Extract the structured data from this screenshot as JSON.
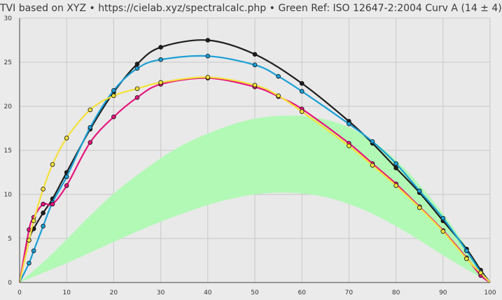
{
  "chart_data": {
    "type": "line",
    "title": "TVI based on XYZ  •  https://cielab.xyz/spectralcalc.php  •  Green Ref: ISO 12647-2:2004 Curv A (14 ± 4)",
    "xlabel": "",
    "ylabel": "",
    "xlim": [
      0,
      100
    ],
    "ylim": [
      0,
      30
    ],
    "grid": true,
    "legend": "none",
    "x_ticks": [
      "0",
      "10",
      "20",
      "30",
      "40",
      "50",
      "60",
      "70",
      "80",
      "90",
      "100"
    ],
    "y_ticks": [
      "0",
      "5",
      "10",
      "15",
      "20",
      "25",
      "30"
    ],
    "reference_band": {
      "name": "",
      "color": "#b2f9b6",
      "x": [
        0,
        5,
        10,
        15,
        20,
        25,
        30,
        35,
        40,
        45,
        50,
        55,
        60,
        65,
        70,
        75,
        80,
        85,
        90,
        95,
        100
      ],
      "upper": [
        0,
        2.3,
        4.9,
        7.6,
        10.1,
        12.2,
        14.1,
        15.7,
        16.9,
        17.9,
        18.6,
        18.9,
        18.9,
        18.5,
        17.6,
        16.1,
        13.9,
        11.1,
        7.8,
        4.0,
        0
      ],
      "lower": [
        0,
        1.1,
        2.2,
        3.4,
        4.6,
        5.8,
        6.9,
        7.9,
        8.8,
        9.5,
        10.0,
        10.2,
        10.1,
        9.7,
        8.9,
        7.8,
        6.4,
        4.8,
        3.1,
        1.5,
        0
      ]
    },
    "series": [
      {
        "name": "",
        "color": "#1e1e1e",
        "x": [
          0,
          2,
          3,
          5,
          7,
          10,
          15,
          20,
          25,
          30,
          40,
          50,
          60,
          70,
          75,
          80,
          85,
          90,
          95,
          98,
          100
        ],
        "values": [
          0,
          4.8,
          6.1,
          7.9,
          9.5,
          12.5,
          17.4,
          21.6,
          24.8,
          26.7,
          27.5,
          25.9,
          22.6,
          18.3,
          15.8,
          13.0,
          10.2,
          7.0,
          3.8,
          1.4,
          0
        ]
      },
      {
        "name": "",
        "color": "#1a9fd6",
        "x": [
          0,
          2,
          3,
          5,
          7,
          10,
          15,
          20,
          25,
          30,
          40,
          50,
          55,
          60,
          70,
          75,
          80,
          85,
          90,
          95,
          98,
          100
        ],
        "values": [
          0,
          2.2,
          3.6,
          6.4,
          9.1,
          12.0,
          17.6,
          21.8,
          24.3,
          25.3,
          25.7,
          24.7,
          23.4,
          21.7,
          18.0,
          16.0,
          13.5,
          10.4,
          7.3,
          3.6,
          1.2,
          0
        ]
      },
      {
        "name": "",
        "color": "#e5157c",
        "x": [
          0,
          2,
          3,
          5,
          7,
          10,
          15,
          20,
          25,
          30,
          40,
          50,
          55,
          60,
          70,
          75,
          80,
          85,
          90,
          95,
          98,
          100
        ],
        "values": [
          0,
          6.0,
          7.4,
          8.9,
          8.9,
          11.0,
          15.9,
          18.8,
          21.0,
          22.5,
          23.2,
          22.2,
          21.1,
          19.7,
          15.8,
          13.5,
          11.2,
          8.6,
          5.9,
          2.8,
          0.8,
          0
        ]
      },
      {
        "name": "",
        "color": "#f4e13a",
        "x": [
          0,
          2,
          3,
          5,
          7,
          10,
          15,
          20,
          25,
          30,
          40,
          50,
          55,
          60,
          70,
          75,
          80,
          85,
          90,
          95,
          98,
          100
        ],
        "values": [
          0,
          4.8,
          7.0,
          10.6,
          13.4,
          16.4,
          19.6,
          21.2,
          22.0,
          22.7,
          23.3,
          22.4,
          21.2,
          19.4,
          15.5,
          13.3,
          11.0,
          8.5,
          5.8,
          2.7,
          1.1,
          0
        ]
      }
    ]
  }
}
